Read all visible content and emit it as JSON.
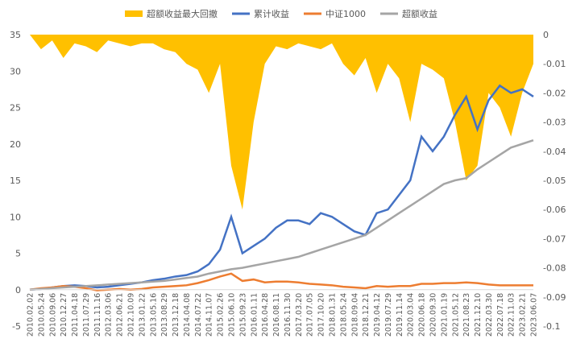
{
  "chart_data": {
    "type": "line",
    "categories": [
      "2010.02.02",
      "2010.05.24",
      "2010.09.06",
      "2010.12.27",
      "2011.04.18",
      "2011.07.29",
      "2011.11.16",
      "2012.03.06",
      "2012.06.21",
      "2012.10.09",
      "2013.01.22",
      "2013.05.16",
      "2013.08.29",
      "2013.12.18",
      "2014.04.08",
      "2014.07.22",
      "2014.11.07",
      "2015.02.26",
      "2015.06.10",
      "2015.09.23",
      "2016.01.11",
      "2016.04.28",
      "2016.08.11",
      "2016.11.30",
      "2017.03.20",
      "2017.07.05",
      "2017.10.20",
      "2018.01.31",
      "2018.05.24",
      "2018.09.04",
      "2018.12.21",
      "2019.04.12",
      "2019.07.29",
      "2019.11.14",
      "2020.03.04",
      "2020.06.18",
      "2020.09.30",
      "2021.01.19",
      "2021.05.12",
      "2021.08.23",
      "2021.12.10",
      "2022.03.30",
      "2022.07.18",
      "2022.11.03",
      "2023.02.21",
      "2023.06.07"
    ],
    "series": [
      {
        "name": "超额收益最大回撤",
        "color": "#ffc000",
        "kind": "area",
        "axis": "y2",
        "values": [
          0,
          -0.005,
          -0.002,
          -0.008,
          -0.003,
          -0.004,
          -0.006,
          -0.002,
          -0.003,
          -0.004,
          -0.003,
          -0.003,
          -0.005,
          -0.006,
          -0.01,
          -0.012,
          -0.02,
          -0.01,
          -0.045,
          -0.06,
          -0.03,
          -0.01,
          -0.004,
          -0.005,
          -0.003,
          -0.004,
          -0.005,
          -0.003,
          -0.01,
          -0.014,
          -0.008,
          -0.02,
          -0.01,
          -0.015,
          -0.03,
          -0.01,
          -0.012,
          -0.015,
          -0.03,
          -0.05,
          -0.045,
          -0.02,
          -0.025,
          -0.035,
          -0.02,
          -0.01
        ]
      },
      {
        "name": "累计收益",
        "color": "#4472c4",
        "values": [
          0,
          0.1,
          0.3,
          0.5,
          0.6,
          0.5,
          0.3,
          0.4,
          0.6,
          0.8,
          1.0,
          1.3,
          1.5,
          1.8,
          2.0,
          2.5,
          3.5,
          5.5,
          10,
          5,
          6,
          7,
          8.5,
          9.5,
          9.5,
          9,
          10.5,
          10,
          9,
          8,
          7.5,
          10.5,
          11,
          13,
          15,
          21,
          19,
          21,
          24,
          26.5,
          22,
          26,
          28,
          27,
          27.5,
          26.5
        ]
      },
      {
        "name": "中证1000",
        "color": "#ed7d31",
        "values": [
          0,
          0.2,
          0.3,
          0.5,
          0.4,
          0.2,
          -0.1,
          0,
          0.1,
          0,
          0.1,
          0.3,
          0.4,
          0.5,
          0.6,
          0.9,
          1.3,
          1.8,
          2.2,
          1.2,
          1.4,
          1.0,
          1.1,
          1.1,
          1.0,
          0.8,
          0.7,
          0.6,
          0.4,
          0.3,
          0.2,
          0.5,
          0.4,
          0.5,
          0.5,
          0.8,
          0.8,
          0.9,
          0.9,
          1.0,
          0.9,
          0.7,
          0.6,
          0.6,
          0.6,
          0.6
        ]
      },
      {
        "name": "超额收益",
        "color": "#a5a5a5",
        "values": [
          0,
          0.1,
          0.2,
          0.3,
          0.4,
          0.5,
          0.6,
          0.7,
          0.8,
          0.9,
          1.0,
          1.1,
          1.2,
          1.4,
          1.6,
          1.8,
          2.2,
          2.5,
          2.8,
          3.0,
          3.3,
          3.6,
          3.9,
          4.2,
          4.5,
          5.0,
          5.5,
          6.0,
          6.5,
          7.0,
          7.5,
          8.5,
          9.5,
          10.5,
          11.5,
          12.5,
          13.5,
          14.5,
          15,
          15.3,
          16.5,
          17.5,
          18.5,
          19.5,
          20,
          20.5
        ]
      }
    ],
    "ylim": [
      -5,
      35
    ],
    "yticks": [
      -5,
      0,
      5,
      10,
      15,
      20,
      25,
      30,
      35
    ],
    "y2lim": [
      -0.1,
      0
    ],
    "y2ticks": [
      0,
      -0.01,
      -0.02,
      -0.03,
      -0.04,
      -0.05,
      -0.06,
      -0.07,
      -0.08,
      -0.09,
      -0.1
    ],
    "legend": "top"
  }
}
